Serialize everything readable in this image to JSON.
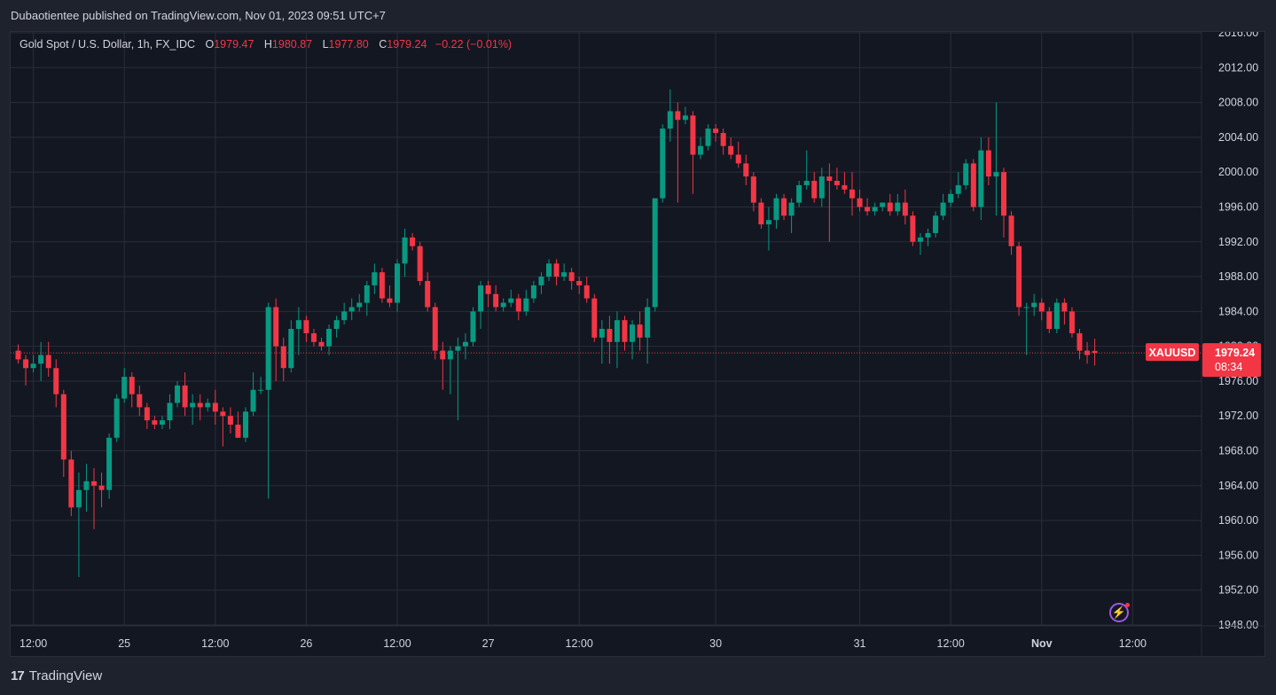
{
  "publish_line": "Dubaotientee published on TradingView.com, Nov 01, 2023 09:51 UTC+7",
  "legend": {
    "symbol": "Gold Spot / U.S. Dollar, 1h, FX_IDC",
    "o_label": "O",
    "o": "1979.47",
    "h_label": "H",
    "h": "1980.87",
    "l_label": "L",
    "l": "1977.80",
    "c_label": "C",
    "c": "1979.24",
    "change": "−0.22 (−0.01%)"
  },
  "price_tag": {
    "symbol": "XAUUSD",
    "price": "1979.24",
    "countdown": "08:34"
  },
  "brand": "TradingView",
  "colors": {
    "up": "#089981",
    "down": "#f23645",
    "bg": "#131722",
    "grid": "#2a2e39",
    "text": "#d1d4dc"
  },
  "icons": {
    "bolt": "lightning-icon",
    "logo": "tradingview-logo"
  },
  "chart_data": {
    "type": "candlestick",
    "y_ticks": [
      "2016.00",
      "2012.00",
      "2008.00",
      "2004.00",
      "2000.00",
      "1996.00",
      "1992.00",
      "1988.00",
      "1984.00",
      "1980.00",
      "1976.00",
      "1972.00",
      "1968.00",
      "1964.00",
      "1960.00",
      "1956.00",
      "1952.00",
      "1948.00"
    ],
    "ylim": [
      1948,
      2016
    ],
    "x_ticks": [
      {
        "label": "12:00",
        "index": 2
      },
      {
        "label": "25",
        "index": 14
      },
      {
        "label": "12:00",
        "index": 26
      },
      {
        "label": "26",
        "index": 38
      },
      {
        "label": "12:00",
        "index": 50
      },
      {
        "label": "27",
        "index": 62
      },
      {
        "label": "12:00",
        "index": 74
      },
      {
        "label": "30",
        "index": 92
      },
      {
        "label": "31",
        "index": 111
      },
      {
        "label": "12:00",
        "index": 123
      },
      {
        "label": "Nov",
        "index": 135
      },
      {
        "label": "12:00",
        "index": 147
      }
    ],
    "last_price": 1979.24,
    "grid": true,
    "candles": [
      [
        1979.5,
        1980.2,
        1978.0,
        1978.5
      ],
      [
        1978.5,
        1979.0,
        1975.5,
        1977.5
      ],
      [
        1977.5,
        1979.0,
        1977.0,
        1978.0
      ],
      [
        1978.0,
        1980.5,
        1976.0,
        1979.0
      ],
      [
        1979.0,
        1980.5,
        1976.5,
        1977.5
      ],
      [
        1977.5,
        1978.5,
        1973.0,
        1974.5
      ],
      [
        1974.5,
        1975.0,
        1965.0,
        1967.0
      ],
      [
        1967.0,
        1968.0,
        1960.5,
        1961.5
      ],
      [
        1961.5,
        1965.5,
        1953.5,
        1963.5
      ],
      [
        1963.5,
        1966.5,
        1961.0,
        1964.5
      ],
      [
        1964.5,
        1966.0,
        1959.0,
        1964.0
      ],
      [
        1964.0,
        1965.5,
        1961.5,
        1963.5
      ],
      [
        1963.5,
        1970.0,
        1962.5,
        1969.5
      ],
      [
        1969.5,
        1974.5,
        1969.0,
        1974.0
      ],
      [
        1974.0,
        1977.5,
        1973.5,
        1976.5
      ],
      [
        1976.5,
        1977.0,
        1973.0,
        1974.5
      ],
      [
        1974.5,
        1975.5,
        1972.0,
        1973.0
      ],
      [
        1973.0,
        1973.5,
        1970.5,
        1971.5
      ],
      [
        1971.5,
        1972.0,
        1970.5,
        1971.0
      ],
      [
        1971.0,
        1972.0,
        1970.5,
        1971.5
      ],
      [
        1971.5,
        1974.5,
        1970.5,
        1973.5
      ],
      [
        1973.5,
        1976.0,
        1973.0,
        1975.5
      ],
      [
        1975.5,
        1977.0,
        1972.0,
        1973.0
      ],
      [
        1973.0,
        1974.5,
        1971.0,
        1973.5
      ],
      [
        1973.5,
        1974.5,
        1971.5,
        1973.0
      ],
      [
        1973.0,
        1974.0,
        1972.5,
        1973.5
      ],
      [
        1973.5,
        1975.0,
        1971.0,
        1972.5
      ],
      [
        1972.5,
        1973.0,
        1968.5,
        1972.0
      ],
      [
        1972.0,
        1973.0,
        1970.0,
        1971.0
      ],
      [
        1971.0,
        1972.5,
        1969.5,
        1969.5
      ],
      [
        1969.5,
        1973.0,
        1969.0,
        1972.5
      ],
      [
        1972.5,
        1977.0,
        1972.0,
        1975.0
      ],
      [
        1975.0,
        1976.5,
        1974.5,
        1975.0
      ],
      [
        1975.0,
        1985.0,
        1962.5,
        1984.5
      ],
      [
        1984.5,
        1985.5,
        1976.0,
        1980.0
      ],
      [
        1980.0,
        1981.0,
        1976.0,
        1977.5
      ],
      [
        1977.5,
        1983.0,
        1977.0,
        1982.0
      ],
      [
        1982.0,
        1984.5,
        1979.0,
        1983.0
      ],
      [
        1983.0,
        1983.5,
        1980.5,
        1981.5
      ],
      [
        1981.5,
        1982.0,
        1980.0,
        1980.5
      ],
      [
        1980.5,
        1981.0,
        1979.5,
        1980.0
      ],
      [
        1980.0,
        1982.5,
        1979.0,
        1982.0
      ],
      [
        1982.0,
        1983.5,
        1981.0,
        1983.0
      ],
      [
        1983.0,
        1985.0,
        1982.5,
        1984.0
      ],
      [
        1984.0,
        1985.5,
        1983.0,
        1984.5
      ],
      [
        1984.5,
        1986.0,
        1984.0,
        1985.0
      ],
      [
        1985.0,
        1987.5,
        1983.5,
        1987.0
      ],
      [
        1987.0,
        1989.5,
        1986.0,
        1988.5
      ],
      [
        1988.5,
        1989.0,
        1985.0,
        1985.5
      ],
      [
        1985.5,
        1987.0,
        1984.5,
        1985.0
      ],
      [
        1985.0,
        1990.0,
        1984.0,
        1989.5
      ],
      [
        1989.5,
        1993.5,
        1988.0,
        1992.5
      ],
      [
        1992.5,
        1993.0,
        1991.0,
        1991.5
      ],
      [
        1991.5,
        1992.0,
        1987.0,
        1987.5
      ],
      [
        1987.5,
        1988.5,
        1984.0,
        1984.5
      ],
      [
        1984.5,
        1985.0,
        1978.5,
        1979.5
      ],
      [
        1979.5,
        1980.5,
        1975.0,
        1978.5
      ],
      [
        1978.5,
        1980.0,
        1974.5,
        1979.5
      ],
      [
        1979.5,
        1981.0,
        1971.5,
        1980.0
      ],
      [
        1980.0,
        1981.5,
        1978.5,
        1980.5
      ],
      [
        1980.5,
        1984.5,
        1980.0,
        1984.0
      ],
      [
        1984.0,
        1987.5,
        1982.0,
        1987.0
      ],
      [
        1987.0,
        1987.5,
        1984.5,
        1986.0
      ],
      [
        1986.0,
        1987.0,
        1984.0,
        1984.5
      ],
      [
        1984.5,
        1985.5,
        1984.0,
        1985.0
      ],
      [
        1985.0,
        1986.5,
        1984.5,
        1985.5
      ],
      [
        1985.5,
        1986.0,
        1983.0,
        1984.0
      ],
      [
        1984.0,
        1986.5,
        1983.5,
        1985.5
      ],
      [
        1985.5,
        1987.5,
        1985.0,
        1987.0
      ],
      [
        1987.0,
        1988.5,
        1986.0,
        1988.0
      ],
      [
        1988.0,
        1990.0,
        1987.5,
        1989.5
      ],
      [
        1989.5,
        1990.0,
        1987.0,
        1988.0
      ],
      [
        1988.0,
        1989.5,
        1987.5,
        1988.5
      ],
      [
        1988.5,
        1989.0,
        1986.5,
        1987.5
      ],
      [
        1987.5,
        1988.0,
        1986.0,
        1987.0
      ],
      [
        1987.0,
        1988.0,
        1985.0,
        1985.5
      ],
      [
        1985.5,
        1986.0,
        1980.5,
        1981.0
      ],
      [
        1981.0,
        1983.0,
        1978.0,
        1982.0
      ],
      [
        1982.0,
        1983.5,
        1978.0,
        1980.5
      ],
      [
        1980.5,
        1984.0,
        1977.5,
        1983.0
      ],
      [
        1983.0,
        1983.5,
        1979.5,
        1980.5
      ],
      [
        1980.5,
        1983.0,
        1978.5,
        1982.5
      ],
      [
        1982.5,
        1984.0,
        1979.5,
        1981.0
      ],
      [
        1981.0,
        1985.5,
        1978.0,
        1984.5
      ],
      [
        1984.5,
        1997.0,
        1984.0,
        1997.0
      ],
      [
        1997.0,
        2005.5,
        1996.5,
        2005.0
      ],
      [
        2005.0,
        2009.5,
        2003.5,
        2007.0
      ],
      [
        2007.0,
        2008.0,
        1996.5,
        2006.0
      ],
      [
        2006.0,
        2007.5,
        2005.5,
        2006.5
      ],
      [
        2006.5,
        2007.0,
        1997.5,
        2002.0
      ],
      [
        2002.0,
        2004.0,
        2001.5,
        2003.0
      ],
      [
        2003.0,
        2005.5,
        2002.5,
        2005.0
      ],
      [
        2005.0,
        2005.5,
        2003.5,
        2004.5
      ],
      [
        2004.5,
        2005.0,
        2002.0,
        2003.0
      ],
      [
        2003.0,
        2004.0,
        2001.5,
        2002.0
      ],
      [
        2002.0,
        2003.5,
        2000.5,
        2001.0
      ],
      [
        2001.0,
        2002.0,
        1998.5,
        1999.5
      ],
      [
        1999.5,
        2000.0,
        1995.5,
        1996.5
      ],
      [
        1996.5,
        1997.0,
        1993.5,
        1994.0
      ],
      [
        1994.0,
        1996.0,
        1991.0,
        1994.5
      ],
      [
        1994.5,
        1997.5,
        1993.5,
        1997.0
      ],
      [
        1997.0,
        1997.5,
        1994.5,
        1995.0
      ],
      [
        1995.0,
        1997.0,
        1993.0,
        1996.5
      ],
      [
        1996.5,
        1999.0,
        1996.0,
        1998.5
      ],
      [
        1998.5,
        2002.5,
        1998.0,
        1999.0
      ],
      [
        1999.0,
        2000.0,
        1996.5,
        1997.0
      ],
      [
        1997.0,
        2000.5,
        1996.0,
        1999.5
      ],
      [
        1999.5,
        2001.0,
        1992.0,
        1999.0
      ],
      [
        1999.0,
        2000.5,
        1998.0,
        1998.5
      ],
      [
        1998.5,
        2000.0,
        1997.5,
        1998.0
      ],
      [
        1998.0,
        2000.0,
        1995.0,
        1997.0
      ],
      [
        1997.0,
        1998.0,
        1995.5,
        1996.0
      ],
      [
        1996.0,
        1997.0,
        1995.0,
        1995.5
      ],
      [
        1995.5,
        1996.5,
        1995.0,
        1996.0
      ],
      [
        1996.0,
        1996.5,
        1995.5,
        1996.5
      ],
      [
        1996.5,
        1997.5,
        1995.0,
        1995.5
      ],
      [
        1995.5,
        1997.5,
        1995.0,
        1996.5
      ],
      [
        1996.5,
        1998.0,
        1994.0,
        1995.0
      ],
      [
        1995.0,
        1995.5,
        1991.5,
        1992.0
      ],
      [
        1992.0,
        1993.0,
        1990.5,
        1992.5
      ],
      [
        1992.5,
        1993.5,
        1991.5,
        1993.0
      ],
      [
        1993.0,
        1995.5,
        1992.5,
        1995.0
      ],
      [
        1995.0,
        1997.5,
        1994.5,
        1996.5
      ],
      [
        1996.5,
        1998.0,
        1996.0,
        1997.5
      ],
      [
        1997.5,
        2000.0,
        1997.0,
        1998.5
      ],
      [
        1998.5,
        2001.5,
        1998.0,
        2001.0
      ],
      [
        2001.0,
        2001.5,
        1995.5,
        1996.0
      ],
      [
        1996.0,
        2004.0,
        1994.5,
        2002.5
      ],
      [
        2002.5,
        2004.0,
        1998.5,
        1999.5
      ],
      [
        1999.5,
        2008.0,
        1995.0,
        2000.0
      ],
      [
        2000.0,
        2000.5,
        1992.5,
        1995.0
      ],
      [
        1995.0,
        1995.5,
        1990.5,
        1991.5
      ],
      [
        1991.5,
        1992.0,
        1983.5,
        1984.5
      ],
      [
        1984.5,
        1985.0,
        1979.0,
        1984.5
      ],
      [
        1984.5,
        1986.0,
        1983.5,
        1985.0
      ],
      [
        1985.0,
        1985.5,
        1983.0,
        1984.0
      ],
      [
        1984.0,
        1984.5,
        1981.5,
        1982.0
      ],
      [
        1982.0,
        1985.5,
        1981.5,
        1985.0
      ],
      [
        1985.0,
        1985.5,
        1982.5,
        1984.0
      ],
      [
        1984.0,
        1984.5,
        1981.0,
        1981.5
      ],
      [
        1981.5,
        1982.0,
        1978.5,
        1979.5
      ],
      [
        1979.5,
        1980.5,
        1978.0,
        1979.0
      ],
      [
        1979.47,
        1980.87,
        1977.8,
        1979.24
      ]
    ]
  }
}
